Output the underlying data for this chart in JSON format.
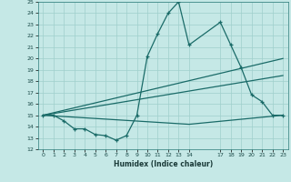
{
  "title": "",
  "xlabel": "Humidex (Indice chaleur)",
  "bg_color": "#c5e8e6",
  "grid_color": "#9fcfcc",
  "line_color": "#1a6b68",
  "ylim": [
    12,
    25
  ],
  "xlim": [
    -0.5,
    23.5
  ],
  "yticks": [
    12,
    13,
    14,
    15,
    16,
    17,
    18,
    19,
    20,
    21,
    22,
    23,
    24,
    25
  ],
  "xticks": [
    0,
    1,
    2,
    3,
    4,
    5,
    6,
    7,
    8,
    9,
    10,
    11,
    12,
    13,
    14,
    17,
    18,
    19,
    20,
    21,
    22,
    23
  ],
  "line1_x": [
    0,
    1,
    2,
    3,
    4,
    5,
    6,
    7,
    8,
    9,
    10,
    11,
    12,
    13,
    14,
    17,
    18,
    19,
    20,
    21,
    22,
    23
  ],
  "line1_y": [
    15,
    15,
    14.5,
    13.8,
    13.8,
    13.3,
    13.2,
    12.8,
    13.2,
    15,
    20.2,
    22.2,
    24,
    25,
    21.2,
    23.2,
    21.2,
    19.2,
    16.8,
    16.2,
    15,
    15
  ],
  "line2_x": [
    0,
    23
  ],
  "line2_y": [
    15,
    20
  ],
  "line3_x": [
    0,
    23
  ],
  "line3_y": [
    15,
    18.5
  ],
  "line4_x": [
    0,
    14,
    23
  ],
  "line4_y": [
    15,
    14.2,
    15
  ]
}
